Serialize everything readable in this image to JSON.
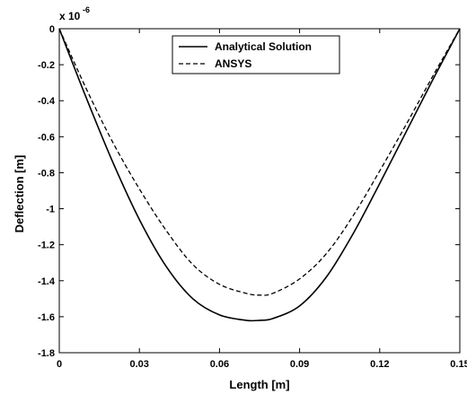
{
  "chart_data": {
    "type": "line",
    "title": "",
    "xlabel": "Length [m]",
    "ylabel": "Deflection [m]",
    "y_multiplier": "x 10",
    "y_exponent": "-6",
    "xlim": [
      0,
      0.15
    ],
    "ylim": [
      -1.8,
      0
    ],
    "x_ticks": [
      "0",
      "0.03",
      "0.06",
      "0.09",
      "0.12",
      "0.15"
    ],
    "y_ticks": [
      "0",
      "-0.2",
      "-0.4",
      "-0.6",
      "-0.8",
      "-1",
      "-1.2",
      "-1.4",
      "-1.6",
      "-1.8"
    ],
    "grid": false,
    "legend_position": "top-center",
    "x": [
      0,
      0.01,
      0.02,
      0.03,
      0.04,
      0.05,
      0.06,
      0.07,
      0.075,
      0.08,
      0.09,
      0.1,
      0.11,
      0.12,
      0.13,
      0.14,
      0.15
    ],
    "series": [
      {
        "name": "Analytical Solution",
        "style": "solid",
        "color": "#000000",
        "values": [
          0,
          -0.38,
          -0.74,
          -1.06,
          -1.32,
          -1.5,
          -1.59,
          -1.62,
          -1.62,
          -1.61,
          -1.54,
          -1.38,
          -1.14,
          -0.86,
          -0.57,
          -0.28,
          0
        ]
      },
      {
        "name": "ANSYS",
        "style": "dashed",
        "color": "#000000",
        "values": [
          0,
          -0.33,
          -0.63,
          -0.89,
          -1.12,
          -1.31,
          -1.42,
          -1.47,
          -1.48,
          -1.47,
          -1.39,
          -1.25,
          -1.04,
          -0.79,
          -0.53,
          -0.26,
          0
        ]
      }
    ]
  }
}
